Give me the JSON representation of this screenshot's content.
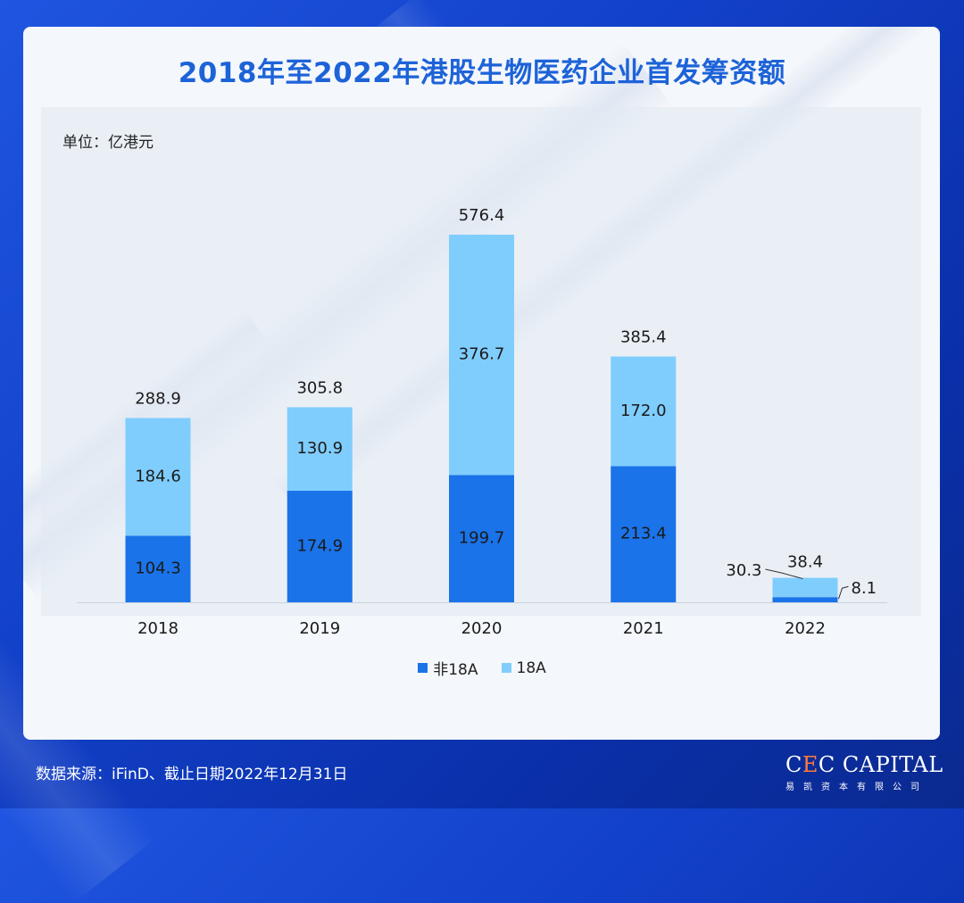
{
  "page": {
    "title": "2018年至2022年港股生物医药企业首发筹资额",
    "unit_label": "单位：亿港元",
    "source": "数据来源：iFinD、截止日期2022年12月31日",
    "logo": {
      "main_prefix": "C",
      "main_mark": "E",
      "main_suffix": "C CAPITAL",
      "sub": "易凯资本有限公司"
    }
  },
  "colors": {
    "non18a": "#1a73e8",
    "a18": "#7fcdfd",
    "title": "#1d63d8"
  },
  "chart_data": {
    "type": "bar",
    "stacked": true,
    "title": "2018年至2022年港股生物医药企业首发筹资额",
    "ylabel": "单位：亿港元",
    "categories": [
      "2018",
      "2019",
      "2020",
      "2021",
      "2022"
    ],
    "series": [
      {
        "name": "非18A",
        "values": [
          104.3,
          174.9,
          199.7,
          213.4,
          8.1
        ]
      },
      {
        "name": "18A",
        "values": [
          184.6,
          130.9,
          376.7,
          172.0,
          30.3
        ]
      }
    ],
    "totals": [
      288.9,
      305.8,
      576.4,
      385.4,
      38.4
    ],
    "value_labels": {
      "non18a": [
        "104.3",
        "174.9",
        "199.7",
        "213.4",
        "8.1"
      ],
      "a18": [
        "184.6",
        "130.9",
        "376.7",
        "172.0",
        "30.3"
      ],
      "totals": [
        "288.9",
        "305.8",
        "576.4",
        "385.4",
        "38.4"
      ]
    },
    "ylim": [
      0,
      576.4
    ],
    "legend": [
      "非18A",
      "18A"
    ],
    "legend_position": "bottom-center"
  }
}
